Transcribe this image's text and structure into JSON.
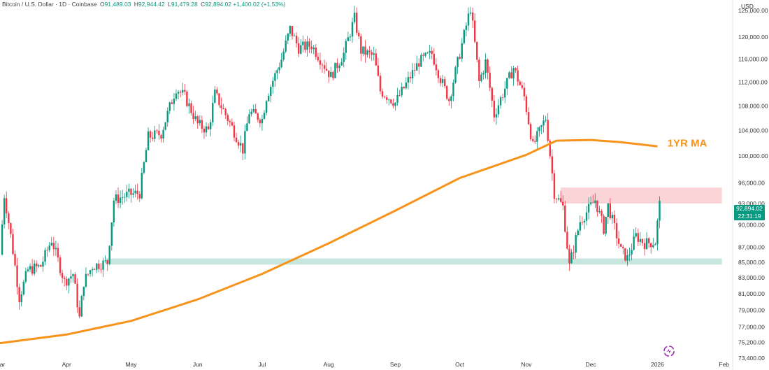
{
  "header": {
    "symbol": "Bitcoin / U.S. Dollar · 1D · Coinbase",
    "open_label": "O",
    "open": "91,489.03",
    "high_label": "H",
    "high": "92,944.42",
    "low_label": "L",
    "low": "91,479.28",
    "close_label": "C",
    "close": "92,894.02",
    "change": "+1,400.02 (+1.53%)"
  },
  "currency": "USD",
  "price_tag": {
    "price": "92,894.02",
    "countdown": "22:31:19"
  },
  "colors": {
    "up": "#089981",
    "down": "#f23645",
    "ma": "#f7931a",
    "resistance_zone": "#f9c9cd",
    "support_zone": "#b8e0d6"
  },
  "chart_data": {
    "type": "candlestick",
    "title": "Bitcoin / U.S. Dollar · 1D · Coinbase",
    "y_scale": "log",
    "ylim": [
      73400,
      127000
    ],
    "x_range": [
      "2025-03-01",
      "2026-02-05"
    ],
    "y_ticks": [
      125000,
      120000,
      116000,
      112000,
      108000,
      104000,
      100000,
      96000,
      93000,
      90000,
      87000,
      85000,
      83000,
      81000,
      79000,
      77000,
      75200,
      73400
    ],
    "y_tick_labels": [
      "125,000.00",
      "120,000.00",
      "116,000.00",
      "112,000.00",
      "108,000.00",
      "104,000.00",
      "100,000.00",
      "96,000.00",
      "93,000.00",
      "90,000.00",
      "87,000.00",
      "85,000.00",
      "83,000.00",
      "81,000.00",
      "79,000.00",
      "77,000.00",
      "75,200.00",
      "73,400.00"
    ],
    "x_ticks": [
      {
        "date": "2025-03-01",
        "label": "Mar"
      },
      {
        "date": "2025-04-01",
        "label": "Apr"
      },
      {
        "date": "2025-05-01",
        "label": "May"
      },
      {
        "date": "2025-06-01",
        "label": "Jun"
      },
      {
        "date": "2025-07-01",
        "label": "Jul"
      },
      {
        "date": "2025-08-01",
        "label": "Aug"
      },
      {
        "date": "2025-09-01",
        "label": "Sep"
      },
      {
        "date": "2025-10-01",
        "label": "Oct"
      },
      {
        "date": "2025-11-01",
        "label": "Nov"
      },
      {
        "date": "2025-12-01",
        "label": "Dec"
      },
      {
        "date": "2026-01-01",
        "label": "2026"
      },
      {
        "date": "2026-02-01",
        "label": "Feb"
      }
    ],
    "close_path": [
      [
        "2025-03-01",
        86000
      ],
      [
        "2025-03-03",
        94200
      ],
      [
        "2025-03-06",
        88500
      ],
      [
        "2025-03-10",
        80500
      ],
      [
        "2025-03-14",
        84000
      ],
      [
        "2025-03-20",
        84500
      ],
      [
        "2025-03-25",
        88000
      ],
      [
        "2025-03-31",
        82500
      ],
      [
        "2025-04-04",
        83500
      ],
      [
        "2025-04-07",
        78000
      ],
      [
        "2025-04-09",
        82500
      ],
      [
        "2025-04-13",
        84500
      ],
      [
        "2025-04-20",
        85000
      ],
      [
        "2025-04-23",
        93500
      ],
      [
        "2025-04-30",
        94300
      ],
      [
        "2025-05-05",
        94500
      ],
      [
        "2025-05-09",
        103000
      ],
      [
        "2025-05-15",
        103500
      ],
      [
        "2025-05-22",
        111000
      ],
      [
        "2025-05-26",
        109500
      ],
      [
        "2025-06-01",
        105000
      ],
      [
        "2025-06-06",
        104000
      ],
      [
        "2025-06-09",
        110000
      ],
      [
        "2025-06-17",
        104500
      ],
      [
        "2025-06-22",
        101000
      ],
      [
        "2025-06-25",
        107000
      ],
      [
        "2025-07-01",
        105800
      ],
      [
        "2025-07-03",
        109500
      ],
      [
        "2025-07-10",
        116000
      ],
      [
        "2025-07-14",
        121500
      ],
      [
        "2025-07-18",
        118000
      ],
      [
        "2025-07-24",
        118500
      ],
      [
        "2025-08-02",
        113000
      ],
      [
        "2025-08-08",
        117000
      ],
      [
        "2025-08-13",
        123500
      ],
      [
        "2025-08-16",
        117500
      ],
      [
        "2025-08-22",
        116500
      ],
      [
        "2025-08-25",
        110500
      ],
      [
        "2025-09-01",
        108500
      ],
      [
        "2025-09-05",
        111000
      ],
      [
        "2025-09-12",
        115500
      ],
      [
        "2025-09-18",
        117000
      ],
      [
        "2025-09-22",
        112600
      ],
      [
        "2025-09-26",
        109000
      ],
      [
        "2025-10-01",
        117000
      ],
      [
        "2025-10-06",
        125500
      ],
      [
        "2025-10-10",
        112000
      ],
      [
        "2025-10-13",
        115500
      ],
      [
        "2025-10-17",
        106500
      ],
      [
        "2025-10-26",
        114500
      ],
      [
        "2025-10-31",
        109500
      ],
      [
        "2025-11-04",
        101500
      ],
      [
        "2025-11-10",
        106000
      ],
      [
        "2025-11-14",
        94500
      ],
      [
        "2025-11-18",
        92500
      ],
      [
        "2025-11-21",
        84500
      ],
      [
        "2025-11-26",
        90500
      ],
      [
        "2025-12-03",
        93500
      ],
      [
        "2025-12-07",
        89500
      ],
      [
        "2025-12-09",
        92700
      ],
      [
        "2025-12-15",
        86500
      ],
      [
        "2025-12-18",
        85500
      ],
      [
        "2025-12-22",
        88500
      ],
      [
        "2025-12-26",
        87500
      ],
      [
        "2025-12-31",
        87700
      ],
      [
        "2026-01-02",
        92894
      ]
    ],
    "ma_series": {
      "name": "1YR MA",
      "points": [
        [
          "2025-03-01",
          75100
        ],
        [
          "2025-04-01",
          76100
        ],
        [
          "2025-05-01",
          77700
        ],
        [
          "2025-06-01",
          80300
        ],
        [
          "2025-07-01",
          83500
        ],
        [
          "2025-08-01",
          87500
        ],
        [
          "2025-09-01",
          92000
        ],
        [
          "2025-10-01",
          96700
        ],
        [
          "2025-11-01",
          100200
        ],
        [
          "2025-11-15",
          102400
        ],
        [
          "2025-12-01",
          102500
        ],
        [
          "2025-12-15",
          102150
        ],
        [
          "2026-01-01",
          101500
        ]
      ]
    },
    "zones": [
      {
        "name": "resistance",
        "from": 93000,
        "to": 95300,
        "start": "2025-11-17",
        "end": "2026-01-31"
      },
      {
        "name": "support",
        "from": 84700,
        "to": 85500,
        "start": "2025-04-19",
        "end": "2026-01-31"
      }
    ],
    "annotations": [
      {
        "text": "1YR MA",
        "date": "2026-01-05",
        "price": 102000
      }
    ]
  }
}
